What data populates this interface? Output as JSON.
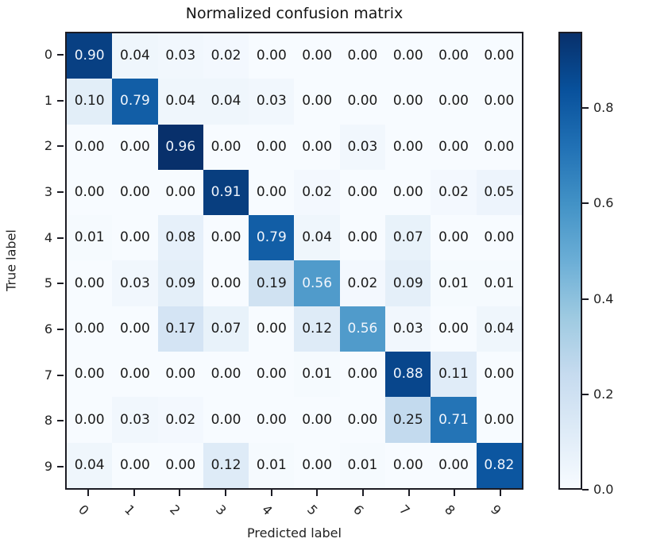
{
  "chart_data": {
    "type": "heatmap",
    "title": "Normalized confusion matrix",
    "xlabel": "Predicted label",
    "ylabel": "True label",
    "x_tick_labels": [
      "0",
      "1",
      "2",
      "3",
      "4",
      "5",
      "6",
      "7",
      "8",
      "9"
    ],
    "y_tick_labels": [
      "0",
      "1",
      "2",
      "3",
      "4",
      "5",
      "6",
      "7",
      "8",
      "9"
    ],
    "matrix": [
      [
        0.9,
        0.04,
        0.03,
        0.02,
        0.0,
        0.0,
        0.0,
        0.0,
        0.0,
        0.0
      ],
      [
        0.1,
        0.79,
        0.04,
        0.04,
        0.03,
        0.0,
        0.0,
        0.0,
        0.0,
        0.0
      ],
      [
        0.0,
        0.0,
        0.96,
        0.0,
        0.0,
        0.0,
        0.03,
        0.0,
        0.0,
        0.0
      ],
      [
        0.0,
        0.0,
        0.0,
        0.91,
        0.0,
        0.02,
        0.0,
        0.0,
        0.02,
        0.05
      ],
      [
        0.01,
        0.0,
        0.08,
        0.0,
        0.79,
        0.04,
        0.0,
        0.07,
        0.0,
        0.0
      ],
      [
        0.0,
        0.03,
        0.09,
        0.0,
        0.19,
        0.56,
        0.02,
        0.09,
        0.01,
        0.01
      ],
      [
        0.0,
        0.0,
        0.17,
        0.07,
        0.0,
        0.12,
        0.56,
        0.03,
        0.0,
        0.04
      ],
      [
        0.0,
        0.0,
        0.0,
        0.0,
        0.0,
        0.01,
        0.0,
        0.88,
        0.11,
        0.0
      ],
      [
        0.0,
        0.03,
        0.02,
        0.0,
        0.0,
        0.0,
        0.0,
        0.25,
        0.71,
        0.0
      ],
      [
        0.04,
        0.0,
        0.0,
        0.12,
        0.01,
        0.0,
        0.01,
        0.0,
        0.0,
        0.82
      ]
    ],
    "value_decimals": 2,
    "vmin": 0.0,
    "vmax": 0.96,
    "x_tick_rotation_deg": 45,
    "grid": false,
    "colormap": {
      "name": "Blues",
      "stops": [
        "#f7fbff",
        "#deebf7",
        "#c6dbef",
        "#9ecae1",
        "#6baed6",
        "#4292c6",
        "#2171b5",
        "#08519c",
        "#08306b"
      ]
    },
    "text_colors": {
      "light_cell": "#1b1b1b",
      "dark_cell": "#f0f5fc",
      "threshold": 0.48
    },
    "colorbar": {
      "tick_labels": [
        "0.8",
        "0.6",
        "0.4",
        "0.2",
        "0.0"
      ],
      "tick_values": [
        0.8,
        0.6,
        0.4,
        0.2,
        0.0
      ]
    }
  }
}
